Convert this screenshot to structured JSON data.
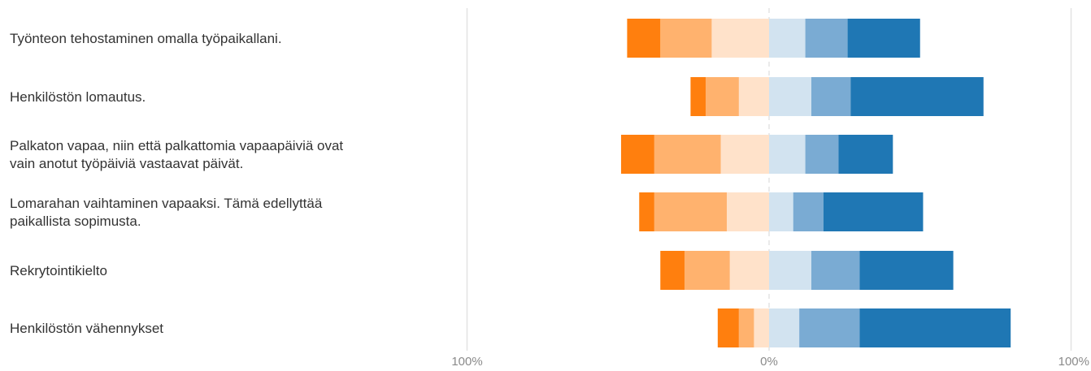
{
  "chart_data": {
    "type": "bar",
    "subtype": "diverging-stacked",
    "title": "",
    "xlabel": "",
    "ylabel": "",
    "xlim": [
      -100,
      100
    ],
    "center_line": "dashed",
    "categories": [
      [
        "Työnteon tehostaminen omalla työpaikallani."
      ],
      [
        "Henkilöstön lomautus."
      ],
      [
        "Palkaton vapaa, niin että palkattomia vapaapäiviä ovat",
        "vain anotut työpäiviä vastaavat päivät."
      ],
      [
        "Lomarahan vaihtaminen vapaaksi. Tämä edellyttää",
        "paikallista sopimusta."
      ],
      [
        "Rekrytointikielto"
      ],
      [
        "Henkilöstön vähennykset"
      ]
    ],
    "x_tick_labels": [
      "100%",
      "0%",
      "100%"
    ],
    "colors": {
      "negative": [
        "#ff7f0e",
        "#ffb26e",
        "#ffe2ca"
      ],
      "positive": [
        "#d2e3f0",
        "#7aabd3",
        "#1f77b4"
      ],
      "gridline": "#e3e3e3",
      "text": "#333333",
      "tick_text": "#8a8a8a"
    },
    "series": [
      {
        "values": [
          -11,
          -5,
          -11,
          -5,
          -8,
          -7
        ]
      },
      {
        "values": [
          -17,
          -11,
          -22,
          -24,
          -15,
          -5
        ]
      },
      {
        "values": [
          -19,
          -10,
          -16,
          -14,
          -13,
          -5
        ]
      },
      {
        "values": [
          12,
          14,
          12,
          8,
          14,
          10
        ]
      },
      {
        "values": [
          14,
          13,
          11,
          10,
          16,
          20
        ]
      },
      {
        "values": [
          24,
          44,
          18,
          33,
          31,
          50
        ]
      }
    ]
  }
}
